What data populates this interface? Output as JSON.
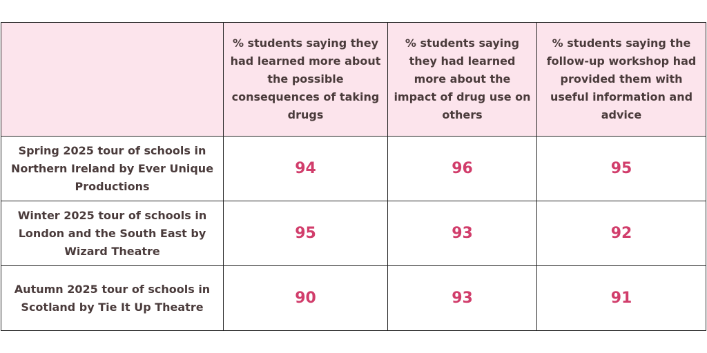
{
  "table": {
    "columns": [
      "% students saying they had learned more about the possible consequences of taking drugs",
      "% students saying they had learned more about the impact of drug use on others",
      "% students saying the follow-up workshop had provided them with useful information and advice"
    ],
    "rows": [
      {
        "label": "Spring 2025 tour of schools in Northern Ireland by Ever Unique Productions",
        "values": [
          94,
          96,
          95
        ]
      },
      {
        "label": "Winter 2025 tour of schools in London and the South East by Wizard Theatre",
        "values": [
          95,
          93,
          92
        ]
      },
      {
        "label": "Autumn 2025 tour of schools in Scotland by Tie It Up Theatre",
        "values": [
          90,
          93,
          91
        ]
      }
    ]
  }
}
